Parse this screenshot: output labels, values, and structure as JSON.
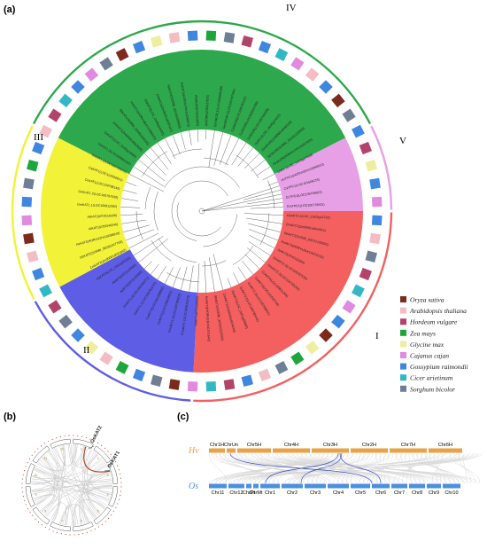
{
  "panels": {
    "a": "(a)",
    "b": "(b)",
    "c": "(c)"
  },
  "clades": [
    {
      "label": "I",
      "color": "#f45f5f"
    },
    {
      "label": "II",
      "color": "#5e5de6"
    },
    {
      "label": "III",
      "color": "#f2f238"
    },
    {
      "label": "IV",
      "color": "#2ea84c"
    },
    {
      "label": "V",
      "color": "#e7a0e6"
    }
  ],
  "legend": [
    {
      "name": "Oryza sativa",
      "color": "#7b2a1c"
    },
    {
      "name": "Arabidopsis thaliana",
      "color": "#f4bcc3"
    },
    {
      "name": "Hordeum vulgare",
      "color": "#b2446a"
    },
    {
      "name": "Zea mays",
      "color": "#1ea63c"
    },
    {
      "name": "Glycine max",
      "color": "#eeeea0"
    },
    {
      "name": "Cajanus cajan",
      "color": "#e08ae0"
    },
    {
      "name": "Gossypium raimondii",
      "color": "#3f86e0"
    },
    {
      "name": "Cicer arietinum",
      "color": "#32b8c4"
    },
    {
      "name": "Sorghum bicolor",
      "color": "#6e7f95"
    }
  ],
  "tree_leaves": [
    "OsAKT3.1(LOC_Os02g14720)",
    "ZmAKT2(Zm00001d044321)",
    "SbAKT2(SORBI_3007G105300)",
    "HvAKT2(HORVU3Hr1G070720)",
    "AtAKT2(AT4G22200)",
    "GmAKT2.1(LOC100787510)",
    "GmAKT2.2(LOC100783244)",
    "CcAKT2(LOC109811264)",
    "CaAKT2(LOC101509726)",
    "GrAKT2.1(LOC105769901)",
    "GrAKT2.2(LOC105785442)",
    "OsAKT1(LOC_Os01g45990)",
    "ZmAKT1(Zm00001d024244)",
    "SbAKT1(SORBI_3003G222000)",
    "HvAKT1(HORVU3Hr1G071640)",
    "AtAKT1(AT2G26650)",
    "GmAKT1.1(LOC100810375)",
    "GmAKT1.2(LOC100780523)",
    "CcAKT1(LOC109818921)",
    "CaAKT1(LOC101499063)",
    "GrAKT1.1(LOC105762270)",
    "GrAKT1.2(LOC105784371)",
    "AtAKT5(AT4G32650)",
    "AtAKT6(AT2G25600)",
    "OsKAT2(LOC_Os01g55200)",
    "ZmKAT2(Zm00001d031862)",
    "SbKAT2(SORBI_3003G317700)",
    "HvKAT2(HORVU2Hr1G098540)",
    "AtKAT1(AT5G46240)",
    "AtKAT2(AT4G18290)",
    "GmKAT1.1(LOC100811582)",
    "GmKAT1.2(LOC100797530)",
    "CcKAT1(LOC109798143)",
    "CaKAT1(LOC101500914)",
    "GrKAT1.1(LOC105790072)",
    "GrKAT1.2(LOC105801422)",
    "OsKAT1(LOC_Os02g14840)",
    "ZmKAT1(Zm00001d002939)",
    "SbKAT1(SORBI_3004G090300)",
    "HvKAT1(HORVU6Hr1G066520)",
    "OsKAT3(LOC_Os06g14030)",
    "ZmKAT3(Zm00001d037637)",
    "SbKAT3(SORBI_3010G099600)",
    "HvKAT3(HORVU7Hr1G036570)",
    "AtSKOR(AT3G02850)",
    "AtGORK(AT5G37500)",
    "GmSKOR.1(LOC100806150)",
    "GmSKOR.2(LOC100787391)",
    "CcSKOR(LOC109790152)",
    "CaSKOR(LOC101504788)",
    "GrSKOR(LOC105768305)",
    "OsK5.2(LOC_Os06g14310)",
    "ZmSKOR(Zm00001d046519)",
    "SbSKOR(SORBI_3010G102000)",
    "HvSKOR(HORVU7Hr1G037920)",
    "OsK4.1(LOC_Os03g07820)",
    "HvTPC1(HORVU5Hr1G068010)",
    "CaTPC1(LOC101506215)",
    "CcTPC1(LOC109796823)",
    "GmTPC1(LOC100776932)"
  ],
  "panel_b": {
    "genes": [
      "OsKAT2",
      "OsKAT1"
    ],
    "chromosome_labels": [
      "1",
      "2",
      "3",
      "4",
      "5",
      "6",
      "7",
      "8",
      "9",
      "10",
      "11",
      "12"
    ]
  },
  "panel_c": {
    "top_species": "Hv",
    "bottom_species": "Os",
    "top_chromosomes": [
      "Chr1H",
      "ChrUn",
      "Chr5H",
      "Chr4H",
      "Chr3H",
      "Chr2H",
      "Chr7H",
      "Chr6H"
    ],
    "bottom_chromosomes": [
      "Chr11",
      "Chr12",
      "ChrPt",
      "ChrMt",
      "Chr1",
      "Chr2",
      "Chr3",
      "Chr4",
      "Chr5",
      "Chr6",
      "Chr7",
      "Chr8",
      "Chr9",
      "Chr10"
    ],
    "top_color": "#e8a34a",
    "bottom_color": "#4a90e2"
  }
}
